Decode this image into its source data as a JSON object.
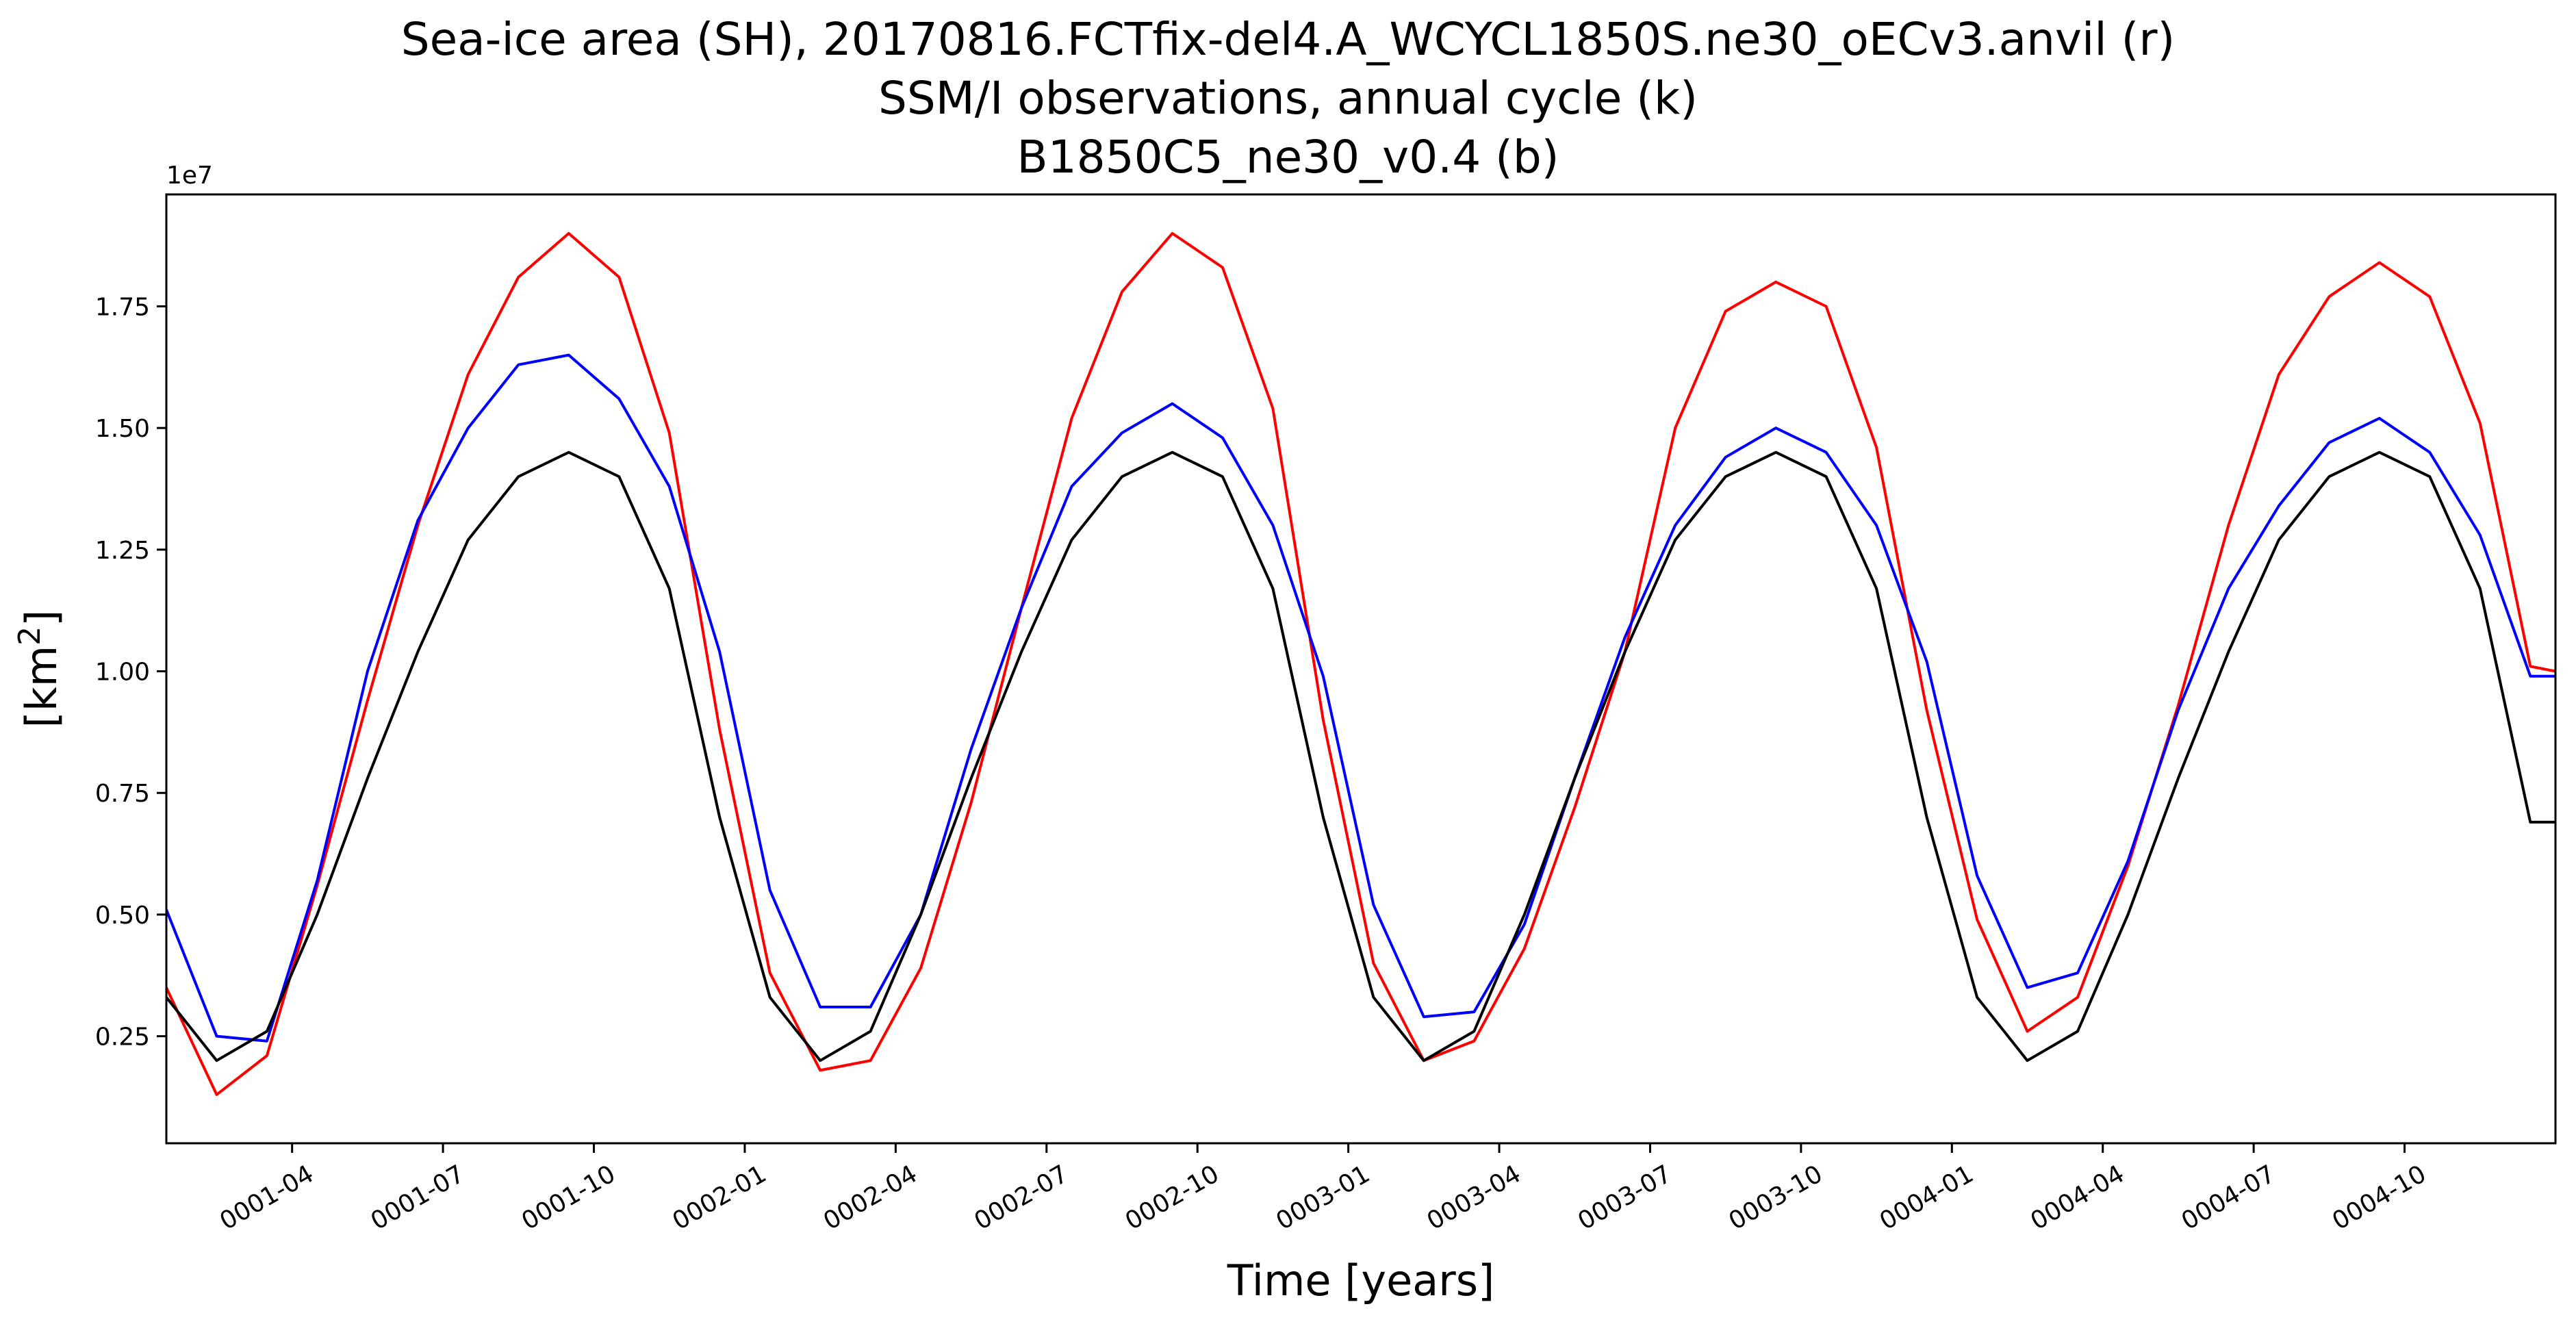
{
  "chart_data": {
    "type": "line",
    "title_lines": [
      "Sea-ice area (SH), 20170816.FCTfix-del4.A_WCYCL1850S.ne30_oECv3.anvil (r)",
      "SSM/I observations, annual cycle (k)",
      "B1850C5_ne30_v0.4 (b)"
    ],
    "xlabel": "Time [years]",
    "ylabel": "[km²]",
    "y_offset_label": "1e7",
    "grid": false,
    "xlim": [
      1,
      48.5
    ],
    "ylim": [
      0.03,
      1.98
    ],
    "x_ticks": [
      {
        "x": 3.5,
        "label": "0001-04"
      },
      {
        "x": 6.5,
        "label": "0001-07"
      },
      {
        "x": 9.5,
        "label": "0001-10"
      },
      {
        "x": 12.5,
        "label": "0002-01"
      },
      {
        "x": 15.5,
        "label": "0002-04"
      },
      {
        "x": 18.5,
        "label": "0002-07"
      },
      {
        "x": 21.5,
        "label": "0002-10"
      },
      {
        "x": 24.5,
        "label": "0003-01"
      },
      {
        "x": 27.5,
        "label": "0003-04"
      },
      {
        "x": 30.5,
        "label": "0003-07"
      },
      {
        "x": 33.5,
        "label": "0003-10"
      },
      {
        "x": 36.5,
        "label": "0004-01"
      },
      {
        "x": 39.5,
        "label": "0004-04"
      },
      {
        "x": 42.5,
        "label": "0004-07"
      },
      {
        "x": 45.5,
        "label": "0004-10"
      }
    ],
    "y_ticks": [
      {
        "y": 0.25,
        "label": "0.25"
      },
      {
        "y": 0.5,
        "label": "0.50"
      },
      {
        "y": 0.75,
        "label": "0.75"
      },
      {
        "y": 1.0,
        "label": "1.00"
      },
      {
        "y": 1.25,
        "label": "1.25"
      },
      {
        "y": 1.5,
        "label": "1.50"
      },
      {
        "y": 1.75,
        "label": "1.75"
      }
    ],
    "x": [
      1,
      2,
      3,
      4,
      5,
      6,
      7,
      8,
      9,
      10,
      11,
      12,
      13,
      14,
      15,
      16,
      17,
      18,
      19,
      20,
      21,
      22,
      23,
      24,
      25,
      26,
      27,
      28,
      29,
      30,
      31,
      32,
      33,
      34,
      35,
      36,
      37,
      38,
      39,
      40,
      41,
      42,
      43,
      44,
      45,
      46,
      47,
      48,
      49
    ],
    "series": [
      {
        "color": "#ff0000",
        "values": [
          0.35,
          0.13,
          0.21,
          0.56,
          0.94,
          1.3,
          1.61,
          1.81,
          1.9,
          1.81,
          1.49,
          0.88,
          0.38,
          0.18,
          0.2,
          0.39,
          0.73,
          1.13,
          1.52,
          1.78,
          1.9,
          1.83,
          1.54,
          0.9,
          0.4,
          0.2,
          0.24,
          0.43,
          0.72,
          1.04,
          1.5,
          1.74,
          1.8,
          1.75,
          1.46,
          0.92,
          0.49,
          0.26,
          0.33,
          0.6,
          0.93,
          1.3,
          1.61,
          1.77,
          1.84,
          1.77,
          1.51,
          1.01,
          0.99
        ]
      },
      {
        "color": "#0000ff",
        "values": [
          0.51,
          0.25,
          0.24,
          0.57,
          1.0,
          1.31,
          1.5,
          1.63,
          1.65,
          1.56,
          1.38,
          1.04,
          0.55,
          0.31,
          0.31,
          0.5,
          0.84,
          1.13,
          1.38,
          1.49,
          1.55,
          1.48,
          1.3,
          0.99,
          0.52,
          0.29,
          0.3,
          0.48,
          0.78,
          1.07,
          1.3,
          1.44,
          1.5,
          1.45,
          1.3,
          1.02,
          0.58,
          0.35,
          0.38,
          0.61,
          0.92,
          1.17,
          1.34,
          1.47,
          1.52,
          1.45,
          1.28,
          0.99,
          0.99
        ]
      },
      {
        "color": "#000000",
        "values": [
          0.33,
          0.2,
          0.26,
          0.5,
          0.78,
          1.04,
          1.27,
          1.4,
          1.45,
          1.4,
          1.17,
          0.7,
          0.33,
          0.2,
          0.26,
          0.5,
          0.78,
          1.04,
          1.27,
          1.4,
          1.45,
          1.4,
          1.17,
          0.7,
          0.33,
          0.2,
          0.26,
          0.5,
          0.78,
          1.04,
          1.27,
          1.4,
          1.45,
          1.4,
          1.17,
          0.7,
          0.33,
          0.2,
          0.26,
          0.5,
          0.78,
          1.04,
          1.27,
          1.4,
          1.45,
          1.4,
          1.17,
          0.69,
          0.69
        ]
      }
    ]
  }
}
